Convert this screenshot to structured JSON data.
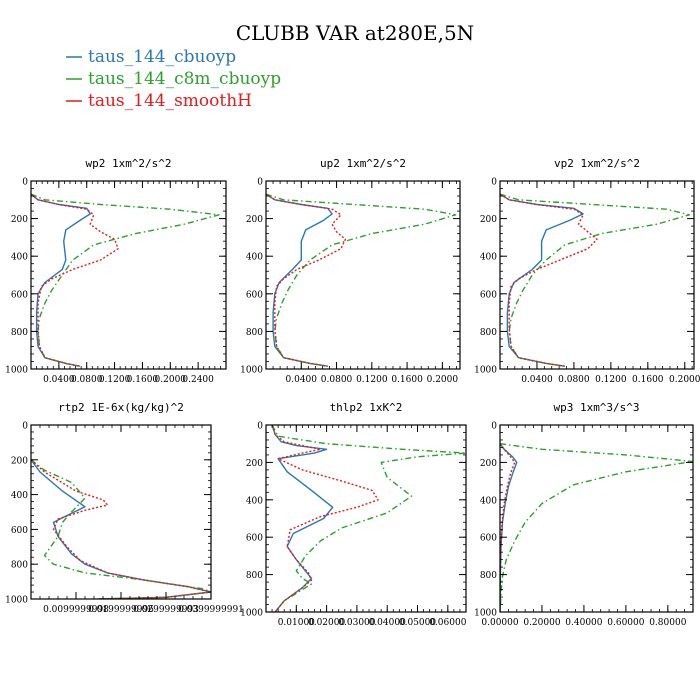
{
  "figure": {
    "title": "CLUBB VAR at280E,5N",
    "legend": [
      {
        "label": "taus_144_cbuoyp",
        "color": "#2878b4"
      },
      {
        "label": "taus_144_c8m_cbuoyp",
        "color": "#2ca02c"
      },
      {
        "label": "taus_144_smoothH",
        "color": "#e41a1c"
      }
    ]
  },
  "chart_data": [
    {
      "type": "line",
      "title": "wp2   1xm^2/s^2",
      "xlim": [
        0,
        0.28
      ],
      "ylim": [
        1000,
        0
      ],
      "xticks": [
        0.04,
        0.08,
        0.12,
        0.16,
        0.2,
        0.24
      ],
      "xtick_labels": [
        "0.0400",
        "0.0800",
        "0.1200",
        "0.1600",
        "0.2000",
        "0.2400"
      ],
      "yticks": [
        0,
        200,
        400,
        600,
        800,
        1000
      ],
      "ytick_labels": [
        "0",
        "200",
        "400",
        "600",
        "800",
        "1000"
      ],
      "series": [
        {
          "name": "taus_144_cbuoyp",
          "color": "#2878b4",
          "dash": "solid",
          "x": [
            0,
            0.01,
            0.04,
            0.08,
            0.085,
            0.07,
            0.05,
            0.047,
            0.05,
            0.045,
            0.02,
            0.01,
            0.008,
            0.008,
            0.01,
            0.02,
            0.05,
            0.07
          ],
          "y": [
            70,
            100,
            125,
            145,
            175,
            210,
            260,
            320,
            420,
            470,
            540,
            600,
            700,
            800,
            880,
            940,
            970,
            985
          ]
        },
        {
          "name": "taus_144_c8m_cbuoyp",
          "color": "#2ca02c",
          "dash": "dashdot",
          "x": [
            0,
            0.02,
            0.1,
            0.2,
            0.27,
            0.22,
            0.15,
            0.09,
            0.06,
            0.045,
            0.03,
            0.02,
            0.012,
            0.01,
            0.012,
            0.02,
            0.05,
            0.07
          ],
          "y": [
            70,
            100,
            125,
            150,
            180,
            230,
            280,
            340,
            420,
            500,
            580,
            650,
            730,
            800,
            880,
            940,
            970,
            985
          ]
        },
        {
          "name": "taus_144_smoothH",
          "color": "#e41a1c",
          "dash": "dotted",
          "x": [
            0,
            0.01,
            0.04,
            0.08,
            0.09,
            0.085,
            0.1,
            0.12,
            0.125,
            0.1,
            0.06,
            0.03,
            0.015,
            0.01,
            0.01,
            0.012,
            0.02,
            0.05,
            0.07
          ],
          "y": [
            70,
            100,
            125,
            150,
            180,
            230,
            270,
            310,
            360,
            420,
            470,
            520,
            560,
            650,
            780,
            880,
            940,
            970,
            985
          ]
        }
      ]
    },
    {
      "type": "line",
      "title": "up2   1xm^2/s^2",
      "xlim": [
        0,
        0.22
      ],
      "ylim": [
        1000,
        0
      ],
      "xticks": [
        0.04,
        0.08,
        0.12,
        0.16,
        0.2
      ],
      "xtick_labels": [
        "0.0400",
        "0.0800",
        "0.1200",
        "0.1600",
        "0.2000"
      ],
      "yticks": [
        0,
        200,
        400,
        600,
        800,
        1000
      ],
      "ytick_labels": [
        "0",
        "200",
        "400",
        "600",
        "800",
        "1000"
      ],
      "series": [
        {
          "name": "taus_144_cbuoyp",
          "color": "#2878b4",
          "dash": "solid",
          "x": [
            0,
            0.01,
            0.04,
            0.07,
            0.075,
            0.065,
            0.045,
            0.04,
            0.04,
            0.03,
            0.015,
            0.01,
            0.008,
            0.008,
            0.01,
            0.02,
            0.05,
            0.07
          ],
          "y": [
            70,
            100,
            125,
            145,
            175,
            210,
            260,
            320,
            420,
            470,
            540,
            600,
            700,
            800,
            880,
            940,
            970,
            985
          ]
        },
        {
          "name": "taus_144_c8m_cbuoyp",
          "color": "#2ca02c",
          "dash": "dashdot",
          "x": [
            0,
            0.02,
            0.1,
            0.18,
            0.215,
            0.18,
            0.12,
            0.075,
            0.05,
            0.035,
            0.025,
            0.018,
            0.012,
            0.01,
            0.012,
            0.02,
            0.05,
            0.07
          ],
          "y": [
            70,
            100,
            125,
            150,
            180,
            230,
            280,
            340,
            420,
            500,
            580,
            650,
            730,
            800,
            880,
            940,
            970,
            985
          ]
        },
        {
          "name": "taus_144_smoothH",
          "color": "#e41a1c",
          "dash": "dotted",
          "x": [
            0,
            0.01,
            0.04,
            0.075,
            0.085,
            0.075,
            0.08,
            0.09,
            0.085,
            0.06,
            0.035,
            0.02,
            0.012,
            0.01,
            0.01,
            0.012,
            0.02,
            0.05,
            0.07
          ],
          "y": [
            70,
            100,
            125,
            150,
            180,
            230,
            270,
            310,
            360,
            420,
            470,
            520,
            560,
            650,
            780,
            880,
            940,
            970,
            985
          ]
        }
      ]
    },
    {
      "type": "line",
      "title": "vp2   1xm^2/s^2",
      "xlim": [
        0,
        0.21
      ],
      "ylim": [
        1000,
        0
      ],
      "xticks": [
        0.04,
        0.08,
        0.12,
        0.16,
        0.2
      ],
      "xtick_labels": [
        "0.0400",
        "0.0800",
        "0.1200",
        "0.1600",
        "0.2000"
      ],
      "yticks": [
        0,
        200,
        400,
        600,
        800,
        1000
      ],
      "ytick_labels": [
        "0",
        "200",
        "400",
        "600",
        "800",
        "1000"
      ],
      "series": [
        {
          "name": "taus_144_cbuoyp",
          "color": "#2878b4",
          "dash": "solid",
          "x": [
            0,
            0.01,
            0.04,
            0.08,
            0.09,
            0.075,
            0.05,
            0.045,
            0.045,
            0.035,
            0.015,
            0.01,
            0.008,
            0.008,
            0.01,
            0.02,
            0.05,
            0.07
          ],
          "y": [
            70,
            100,
            125,
            145,
            175,
            210,
            260,
            320,
            420,
            470,
            540,
            600,
            700,
            800,
            880,
            940,
            970,
            985
          ]
        },
        {
          "name": "taus_144_c8m_cbuoyp",
          "color": "#2ca02c",
          "dash": "dashdot",
          "x": [
            0,
            0.02,
            0.1,
            0.18,
            0.205,
            0.17,
            0.11,
            0.07,
            0.05,
            0.035,
            0.025,
            0.018,
            0.012,
            0.01,
            0.012,
            0.02,
            0.05,
            0.07
          ],
          "y": [
            70,
            100,
            125,
            150,
            180,
            230,
            280,
            340,
            420,
            500,
            580,
            650,
            730,
            800,
            880,
            940,
            970,
            985
          ]
        },
        {
          "name": "taus_144_smoothH",
          "color": "#e41a1c",
          "dash": "dotted",
          "x": [
            0,
            0.01,
            0.04,
            0.08,
            0.09,
            0.085,
            0.095,
            0.105,
            0.095,
            0.065,
            0.04,
            0.02,
            0.012,
            0.01,
            0.01,
            0.012,
            0.02,
            0.05,
            0.07
          ],
          "y": [
            70,
            100,
            125,
            150,
            180,
            230,
            270,
            310,
            360,
            420,
            470,
            520,
            560,
            650,
            780,
            880,
            940,
            970,
            985
          ]
        }
      ]
    },
    {
      "type": "line",
      "title": "rtp2   1E-6x(kg/kg)^2",
      "xlim": [
        0,
        0.04
      ],
      "ylim": [
        1000,
        0
      ],
      "xticks": [
        0.01,
        0.02,
        0.03,
        0.04
      ],
      "xtick_labels": [
        "0.0099999998",
        "0.0199999996",
        "0.0299999993",
        "0.0399999991"
      ],
      "yticks": [
        0,
        200,
        400,
        600,
        800,
        1000
      ],
      "ytick_labels": [
        "0",
        "200",
        "400",
        "600",
        "800",
        "1000"
      ],
      "series": [
        {
          "name": "taus_144_cbuoyp",
          "color": "#2878b4",
          "dash": "solid",
          "x": [
            0,
            0.002,
            0.007,
            0.012,
            0.008,
            0.005,
            0.006,
            0.009,
            0.012,
            0.017,
            0.025,
            0.035,
            0.04,
            0.03,
            0.015
          ],
          "y": [
            200,
            270,
            380,
            470,
            520,
            560,
            640,
            740,
            800,
            850,
            890,
            930,
            960,
            990,
            1000
          ]
        },
        {
          "name": "taus_144_c8m_cbuoyp",
          "color": "#2ca02c",
          "dash": "dashdot",
          "x": [
            0,
            0.003,
            0.009,
            0.012,
            0.009,
            0.007,
            0.006,
            0.003,
            0.005,
            0.012,
            0.025,
            0.038,
            0.04,
            0.03,
            0.015
          ],
          "y": [
            200,
            260,
            330,
            420,
            500,
            560,
            640,
            750,
            800,
            850,
            890,
            940,
            960,
            990,
            1000
          ]
        },
        {
          "name": "taus_144_smoothH",
          "color": "#e41a1c",
          "dash": "dotted",
          "x": [
            0,
            0.003,
            0.01,
            0.016,
            0.017,
            0.012,
            0.006,
            0.005,
            0.008,
            0.011,
            0.017,
            0.025,
            0.035,
            0.04,
            0.03,
            0.015
          ],
          "y": [
            200,
            270,
            380,
            430,
            460,
            490,
            540,
            600,
            700,
            780,
            850,
            890,
            930,
            960,
            990,
            1000
          ]
        }
      ]
    },
    {
      "type": "line",
      "title": "thlp2   1xK^2",
      "xlim": [
        0,
        0.066
      ],
      "ylim": [
        1000,
        0
      ],
      "xticks": [
        0.01,
        0.02,
        0.03,
        0.04,
        0.05,
        0.06
      ],
      "xtick_labels": [
        "0.01000",
        "0.02000",
        "0.03000",
        "0.04000",
        "0.05000",
        "0.06000"
      ],
      "yticks": [
        0,
        200,
        400,
        600,
        800,
        1000
      ],
      "ytick_labels": [
        "0",
        "200",
        "400",
        "600",
        "800",
        "1000"
      ],
      "series": [
        {
          "name": "taus_144_cbuoyp",
          "color": "#2878b4",
          "dash": "solid",
          "x": [
            0.002,
            0.003,
            0.005,
            0.01,
            0.02,
            0.016,
            0.004,
            0.007,
            0.015,
            0.022,
            0.019,
            0.009,
            0.007,
            0.01,
            0.013,
            0.015,
            0.012,
            0.006,
            0.003
          ],
          "y": [
            0,
            50,
            90,
            110,
            130,
            150,
            180,
            250,
            350,
            440,
            500,
            580,
            650,
            720,
            780,
            820,
            870,
            940,
            1000
          ]
        },
        {
          "name": "taus_144_c8m_cbuoyp",
          "color": "#2ca02c",
          "dash": "dashdot",
          "x": [
            0.002,
            0.004,
            0.02,
            0.045,
            0.066,
            0.05,
            0.038,
            0.04,
            0.048,
            0.04,
            0.025,
            0.018,
            0.013,
            0.01,
            0.012,
            0.015,
            0.012,
            0.006,
            0.003
          ],
          "y": [
            0,
            60,
            100,
            130,
            150,
            170,
            200,
            280,
            380,
            470,
            550,
            620,
            700,
            780,
            820,
            850,
            880,
            940,
            1000
          ]
        },
        {
          "name": "taus_144_smoothH",
          "color": "#e41a1c",
          "dash": "dotted",
          "x": [
            0.002,
            0.003,
            0.006,
            0.012,
            0.018,
            0.012,
            0.004,
            0.012,
            0.025,
            0.035,
            0.037,
            0.03,
            0.018,
            0.008,
            0.007,
            0.01,
            0.014,
            0.015,
            0.012,
            0.006,
            0.003
          ],
          "y": [
            0,
            50,
            90,
            110,
            130,
            150,
            180,
            240,
            300,
            350,
            400,
            440,
            490,
            560,
            650,
            720,
            790,
            830,
            870,
            940,
            1000
          ]
        }
      ]
    },
    {
      "type": "line",
      "title": "wp3   1xm^3/s^3",
      "xlim": [
        0,
        0.92
      ],
      "ylim": [
        1000,
        0
      ],
      "xticks": [
        0.0,
        0.2,
        0.4,
        0.6,
        0.8
      ],
      "xtick_labels": [
        "0.00000",
        "0.20000",
        "0.40000",
        "0.60000",
        "0.80000"
      ],
      "yticks": [
        0,
        200,
        400,
        600,
        800,
        1000
      ],
      "ytick_labels": [
        "0",
        "200",
        "400",
        "600",
        "800",
        "1000"
      ],
      "series": [
        {
          "name": "taus_144_cbuoyp",
          "color": "#2878b4",
          "dash": "solid",
          "x": [
            0,
            0.02,
            0.06,
            0.08,
            0.06,
            0.04,
            0.025,
            0.012,
            0.005,
            0.002,
            0
          ],
          "y": [
            100,
            130,
            170,
            200,
            260,
            330,
            420,
            520,
            650,
            800,
            1000
          ]
        },
        {
          "name": "taus_144_c8m_cbuoyp",
          "color": "#2ca02c",
          "dash": "dashdot",
          "x": [
            0,
            0.2,
            0.6,
            0.92,
            0.6,
            0.35,
            0.2,
            0.12,
            0.07,
            0.03,
            0.01,
            0
          ],
          "y": [
            100,
            130,
            160,
            195,
            250,
            320,
            420,
            520,
            620,
            720,
            820,
            1000
          ]
        },
        {
          "name": "taus_144_smoothH",
          "color": "#e41a1c",
          "dash": "dotted",
          "x": [
            0,
            0.02,
            0.05,
            0.07,
            0.05,
            0.035,
            0.02,
            0.01,
            0.004,
            0.001,
            0
          ],
          "y": [
            100,
            130,
            170,
            200,
            260,
            330,
            420,
            520,
            650,
            800,
            1000
          ]
        }
      ]
    }
  ]
}
